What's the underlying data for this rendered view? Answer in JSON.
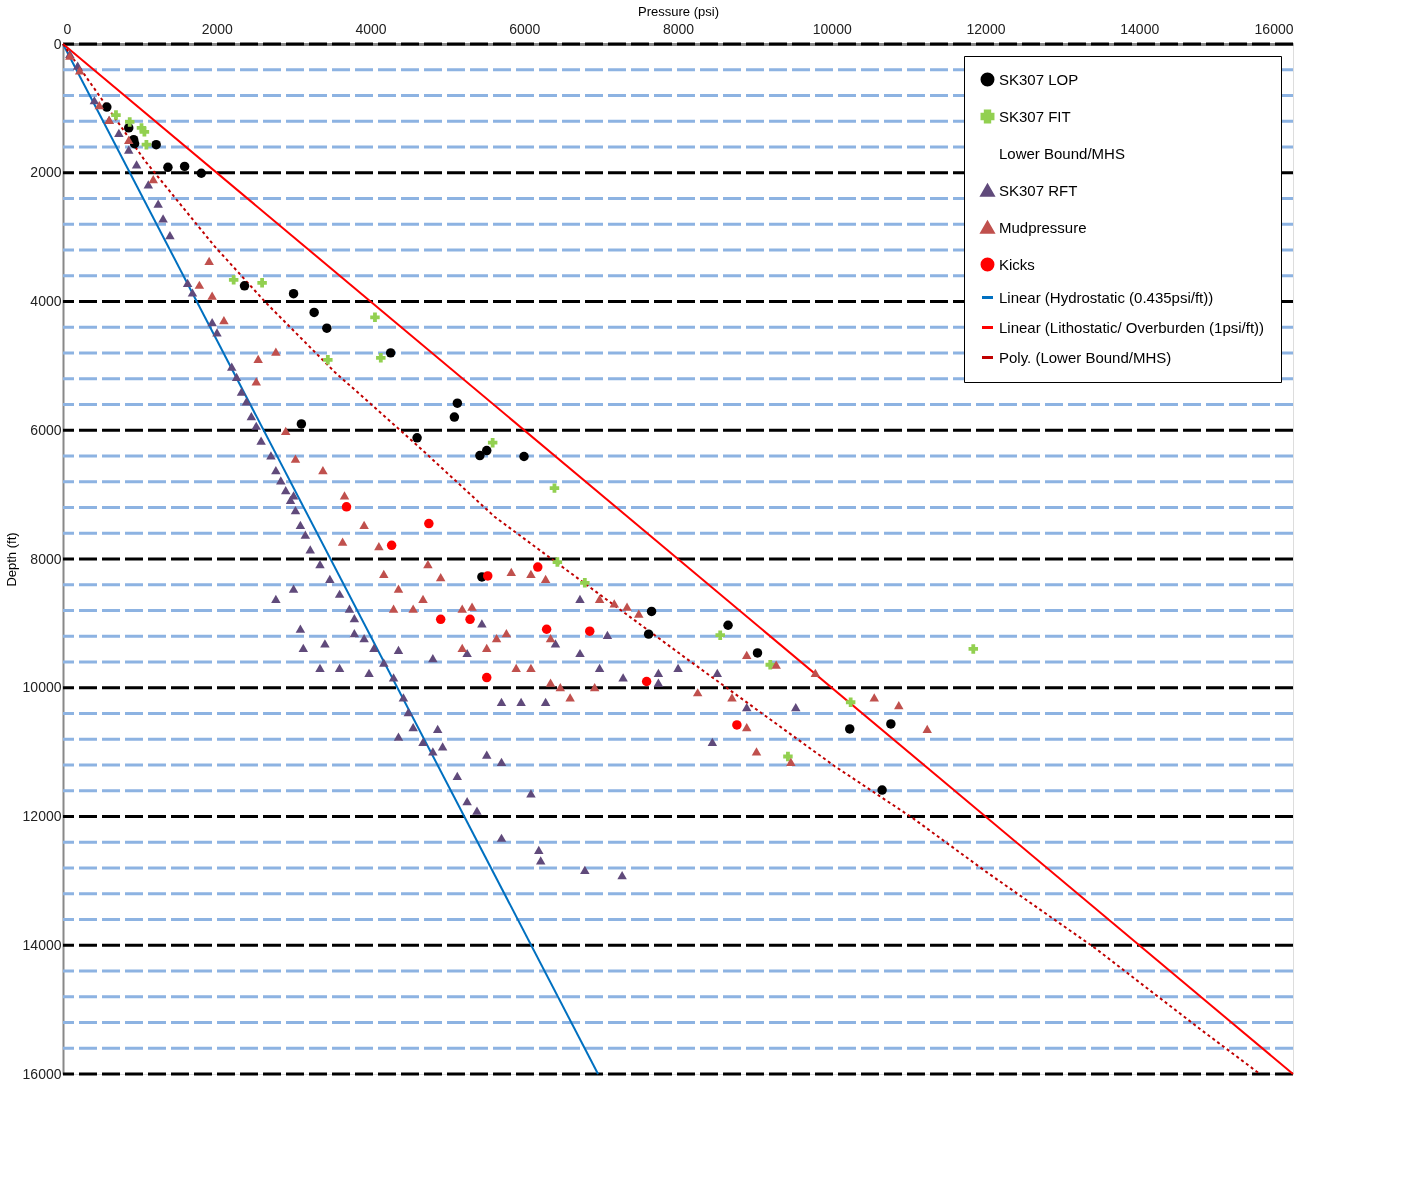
{
  "chart_data": {
    "type": "scatter",
    "xlabel": "Pressure (psi)",
    "ylabel": "Depth (ft)",
    "xlim": [
      0,
      16000
    ],
    "xticks": [
      0,
      2000,
      4000,
      6000,
      8000,
      10000,
      12000,
      14000,
      16000
    ],
    "ylim": [
      16000,
      0
    ],
    "yticks": [
      0,
      {
        "value": 400,
        "label": null
      },
      {
        "value": 800,
        "label": null
      },
      {
        "value": 1200,
        "label": null
      },
      {
        "value": 1600,
        "label": null
      },
      2000,
      {
        "value": 2400,
        "label": null
      },
      {
        "value": 2800,
        "label": null
      },
      {
        "value": 3200,
        "label": null
      },
      {
        "value": 3600,
        "label": null
      },
      4000,
      {
        "value": 4400,
        "label": null
      },
      {
        "value": 4800,
        "label": null
      },
      {
        "value": 5200,
        "label": null
      },
      {
        "value": 5600,
        "label": null
      },
      6000,
      {
        "value": 6400,
        "label": null
      },
      {
        "value": 6800,
        "label": null
      },
      {
        "value": 7200,
        "label": null
      },
      {
        "value": 7600,
        "label": null
      },
      8000,
      {
        "value": 8400,
        "label": null
      },
      {
        "value": 8800,
        "label": null
      },
      {
        "value": 9200,
        "label": null
      },
      {
        "value": 9600,
        "label": null
      },
      10000,
      {
        "value": 10400,
        "label": null
      },
      {
        "value": 10800,
        "label": null
      },
      {
        "value": 11200,
        "label": null
      },
      {
        "value": 11600,
        "label": null
      },
      12000,
      {
        "value": 12400,
        "label": null
      },
      {
        "value": 12800,
        "label": null
      },
      {
        "value": 13200,
        "label": null
      },
      {
        "value": 13600,
        "label": null
      },
      14000,
      {
        "value": 14400,
        "label": null
      },
      {
        "value": 14800,
        "label": null
      },
      {
        "value": 15200,
        "label": null
      },
      {
        "value": 15600,
        "label": null
      },
      16000
    ],
    "grid": "y",
    "legend": "top right",
    "series": [
      {
        "name": "SK307 LOP",
        "color": "#000000",
        "marker": "circle",
        "x": [
          570,
          855,
          919,
          931,
          1212,
          1365,
          1582,
          1799,
          2361,
          2999,
          3267,
          3432,
          4262,
          3101,
          4606,
          5091,
          5130,
          5423,
          5512,
          5997,
          5449,
          7656,
          7618,
          8651,
          9034,
          10234,
          10769,
          10655
        ],
        "values": [
          980,
          1303,
          1487,
          1548,
          1564,
          1916,
          1901,
          2008,
          3756,
          3878,
          4170,
          4415,
          4798,
          5902,
          6117,
          5795,
          5580,
          6393,
          6316,
          6408,
          8278,
          8815,
          9167,
          9029,
          9459,
          10639,
          10562,
          11589
        ]
      },
      {
        "name": "SK307 FIT",
        "color": "#92d050",
        "marker": "cross",
        "x": [
          689,
          868,
          1021,
          1059,
          1085,
          2220,
          2590,
          4058,
          4134,
          3445,
          5589,
          6393,
          6431,
          6788,
          8549,
          9200,
          9430,
          11841,
          10246
        ],
        "values": [
          1104,
          1211,
          1303,
          1364,
          1564,
          3664,
          3710,
          4246,
          4875,
          4906,
          6193,
          6899,
          8048,
          8370,
          9183,
          9643,
          11068,
          9397,
          10225
        ]
      },
      {
        "name": "Lower Bound/MHS",
        "marker": "none"
      },
      {
        "name": "SK307 RFT",
        "color": "#604a7b",
        "marker": "triangle",
        "x": [
          89,
          191,
          408,
          600,
          727,
          855,
          957,
          1110,
          1238,
          1302,
          1391,
          1621,
          1684,
          1940,
          2003,
          2195,
          2258,
          2322,
          2386,
          2450,
          2514,
          2577,
          2705,
          2769,
          2833,
          2897,
          2960,
          3024,
          3088,
          3152,
          3216,
          3343,
          3471,
          3598,
          3726,
          3790,
          3917,
          4045,
          4173,
          4300,
          4428,
          4492,
          4555,
          4683,
          4811,
          2999,
          2769,
          2999,
          3088,
          3126,
          3407,
          3598,
          3790,
          3343,
          3981,
          4364,
          4874,
          4938,
          5129,
          5257,
          5385,
          5512,
          5704,
          5704,
          6087,
          6189,
          6214,
          6788,
          7273,
          5704,
          5959,
          6278,
          6725,
          6980,
          7286,
          7745,
          8001,
          8511,
          8447,
          8894,
          9532,
          6725,
          7082,
          7745,
          4364,
          4811,
          5449,
          5257,
          6406
        ],
        "values": [
          153,
          337,
          874,
          1180,
          1380,
          1640,
          1870,
          2180,
          2480,
          2710,
          2970,
          3710,
          3860,
          4320,
          4480,
          5010,
          5170,
          5400,
          5550,
          5780,
          5930,
          6160,
          6390,
          6620,
          6780,
          6930,
          7080,
          7240,
          7470,
          7620,
          7850,
          8080,
          8310,
          8540,
          8770,
          8920,
          9230,
          9380,
          9610,
          9840,
          10150,
          10380,
          10610,
          10840,
          10990,
          7010,
          8620,
          8460,
          9080,
          9380,
          9310,
          9690,
          9150,
          9690,
          9770,
          10760,
          10640,
          10910,
          11370,
          11760,
          11910,
          11040,
          11150,
          12330,
          11640,
          12520,
          12680,
          12830,
          12910,
          10220,
          10220,
          10220,
          9460,
          9690,
          9840,
          9770,
          9690,
          9770,
          10840,
          10300,
          10300,
          8620,
          9180,
          9920,
          9410,
          9540,
          9000,
          9460,
          9310
        ]
      },
      {
        "name": "Mudpressure",
        "color": "#c0504d",
        "marker": "triangle",
        "x": [
          89,
          217,
          472,
          600,
          855,
          1174,
          1901,
          1774,
          1940,
          2093,
          2769,
          2539,
          2514,
          2897,
          3024,
          3381,
          3662,
          3637,
          3917,
          4109,
          4747,
          4913,
          4173,
          4364,
          4683,
          4555,
          4300,
          5193,
          5321,
          5193,
          5512,
          5640,
          5768,
          5895,
          6087,
          6087,
          6278,
          5831,
          6342,
          6469,
          6916,
          6980,
          7171,
          7337,
          7490,
          8894,
          9277,
          9787,
          6342,
          6597,
          8256,
          8702,
          8894,
          9021,
          9468,
          10553,
          10872,
          11242
        ],
        "values": [
          180,
          410,
          950,
          1180,
          1490,
          2100,
          3370,
          3740,
          3910,
          4290,
          4780,
          4890,
          5240,
          6010,
          6440,
          6620,
          7010,
          7730,
          7470,
          7800,
          8080,
          8280,
          8230,
          8460,
          8620,
          8770,
          8770,
          8770,
          8740,
          9380,
          9380,
          9230,
          9150,
          9690,
          9690,
          8230,
          8310,
          8200,
          9920,
          9990,
          9990,
          8620,
          8690,
          8740,
          8850,
          9490,
          9640,
          9770,
          9230,
          10150,
          10070,
          10150,
          10610,
          10990,
          11150,
          10150,
          10270,
          10640
        ]
      },
      {
        "name": "Kicks",
        "color": "#ff0000",
        "marker": "circle",
        "x": [
          3688,
          4759,
          4275,
          5525,
          6176,
          4913,
          5295,
          6291,
          6852,
          5512,
          7592,
          8766
        ],
        "values": [
          7190,
          7450,
          7788,
          8263,
          8125,
          8937,
          8937,
          9091,
          9121,
          9842,
          9903,
          10578
        ]
      },
      {
        "name": "Linear (Hydrostatic (0.435psi/ft))",
        "type": "line",
        "color": "#0070c0",
        "line_style": "solid",
        "x": [
          0,
          6960
        ],
        "values": [
          0,
          16000
        ]
      },
      {
        "name": "Linear (Lithostatic/ Overburden (1psi/ft))",
        "type": "line",
        "color": "#ff0000",
        "line_style": "solid",
        "x": [
          0,
          16000
        ],
        "values": [
          0,
          16000
        ]
      },
      {
        "name": "Poly. (Lower Bound/MHS)",
        "type": "line",
        "color": "#c00000",
        "line_style": "dotted",
        "x": [
          0,
          1070,
          1970,
          2640,
          3530,
          4640,
          5610,
          6300,
          8090,
          10040,
          11060,
          12010,
          13420,
          14790,
          15570
        ],
        "values": [
          0,
          1820,
          3140,
          4020,
          5090,
          6270,
          7340,
          7950,
          9530,
          11220,
          12030,
          12860,
          14040,
          15300,
          16000
        ]
      }
    ]
  }
}
